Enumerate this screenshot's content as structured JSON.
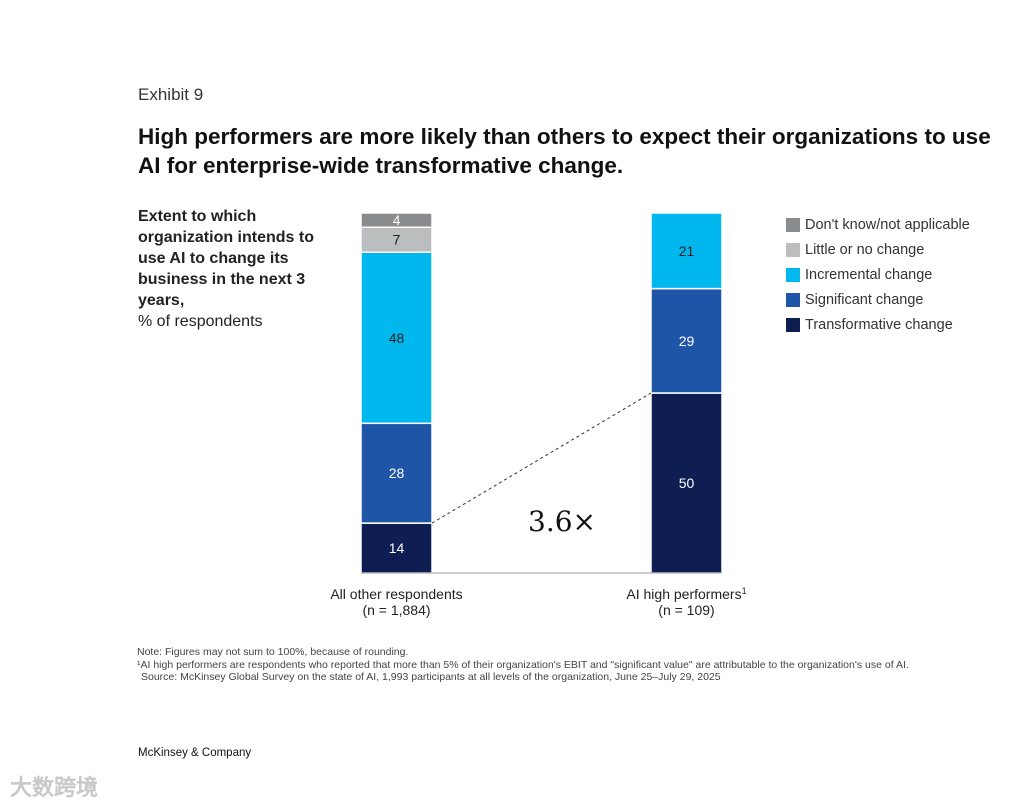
{
  "exhibit": "Exhibit 9",
  "title": "High performers are more likely than others to expect their organizations to use AI for enterprise-wide transformative change.",
  "subtitle_bold": "Extent to which organization intends to use AI to change its business in the next 3 years,",
  "subtitle_normal": "% of respondents",
  "chart_data": {
    "type": "bar",
    "stacked": true,
    "categories": [
      "All other respondents",
      "AI high performers"
    ],
    "category_notes": [
      "(n = 1,884)",
      "(n = 109)"
    ],
    "category_superscripts": [
      "",
      "1"
    ],
    "series": [
      {
        "name": "Transformative change",
        "color": "#0f1e52",
        "values": [
          14,
          50
        ]
      },
      {
        "name": "Significant change",
        "color": "#1f55a6",
        "values": [
          28,
          29
        ]
      },
      {
        "name": "Incremental change",
        "color": "#00b8ee",
        "values": [
          48,
          21
        ]
      },
      {
        "name": "Little or no change",
        "color": "#bcbdbf",
        "values": [
          7,
          0
        ]
      },
      {
        "name": "Don't know/not applicable",
        "color": "#8a8b8d",
        "values": [
          4,
          0
        ]
      }
    ],
    "legend_order": [
      "Don't know/not applicable",
      "Little or no change",
      "Incremental change",
      "Significant change",
      "Transformative change"
    ],
    "legend_position": "right",
    "annotation": "3.6×",
    "ylabel": "% of respondents"
  },
  "notes": {
    "note": "Note: Figures may not sum to 100%, because of rounding.",
    "footnote": "¹AI high performers are respondents who reported that more than 5% of their organization's EBIT and \"significant value\" are attributable to the organization's use of AI.",
    "source": "Source: McKinsey Global Survey on the state of AI, 1,993 participants at all levels of the organization, June 25–July 29, 2025"
  },
  "brand": "McKinsey & Company",
  "watermark": "大数跨境"
}
